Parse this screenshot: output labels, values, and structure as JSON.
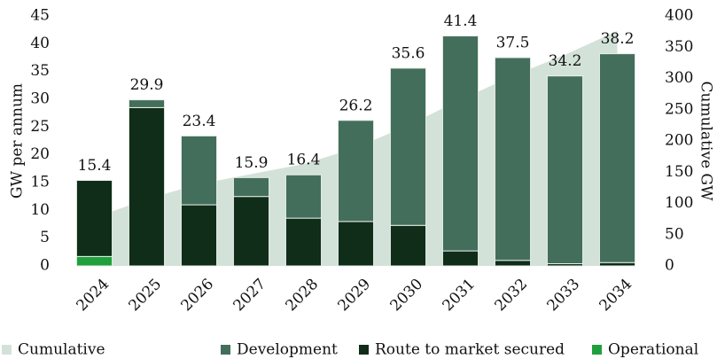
{
  "chart_data": {
    "type": "bar",
    "categories": [
      "2024",
      "2025",
      "2026",
      "2027",
      "2028",
      "2029",
      "2030",
      "2031",
      "2032",
      "2033",
      "2034"
    ],
    "series": [
      {
        "name": "Cumulative",
        "color": "#d3e2d8",
        "axis": "y2",
        "values": [
          77,
          107,
          131,
          147,
          163,
          189,
          225,
          266,
          304,
          338,
          376
        ]
      },
      {
        "name": "Development",
        "color": "#436e5b",
        "values": [
          0,
          1.4,
          12.4,
          3.4,
          7.8,
          18.2,
          28.3,
          38.7,
          36.5,
          33.8,
          37.6
        ]
      },
      {
        "name": "Route to market secured",
        "color": "#0f2d19",
        "values": [
          13.7,
          28.5,
          11,
          12.5,
          8.6,
          8,
          7.3,
          2.7,
          1,
          0.4,
          0.6
        ]
      },
      {
        "name": "Operational",
        "color": "#1fa03c",
        "values": [
          1.7,
          0,
          0,
          0,
          0,
          0,
          0,
          0,
          0,
          0,
          0
        ]
      }
    ],
    "totals": [
      15.4,
      29.9,
      23.4,
      15.9,
      16.4,
      26.2,
      35.6,
      41.4,
      37.5,
      34.2,
      38.2
    ],
    "ylabel": "GW per annum",
    "y2label": "Cumulative GW",
    "ylim": [
      0,
      45
    ],
    "yticks": [
      0,
      5,
      10,
      15,
      20,
      25,
      30,
      35,
      40,
      45
    ],
    "y2lim": [
      0,
      400
    ],
    "y2ticks": [
      0,
      50,
      100,
      150,
      200,
      250,
      300,
      350,
      400
    ],
    "grid": false,
    "legend": "bottom"
  }
}
